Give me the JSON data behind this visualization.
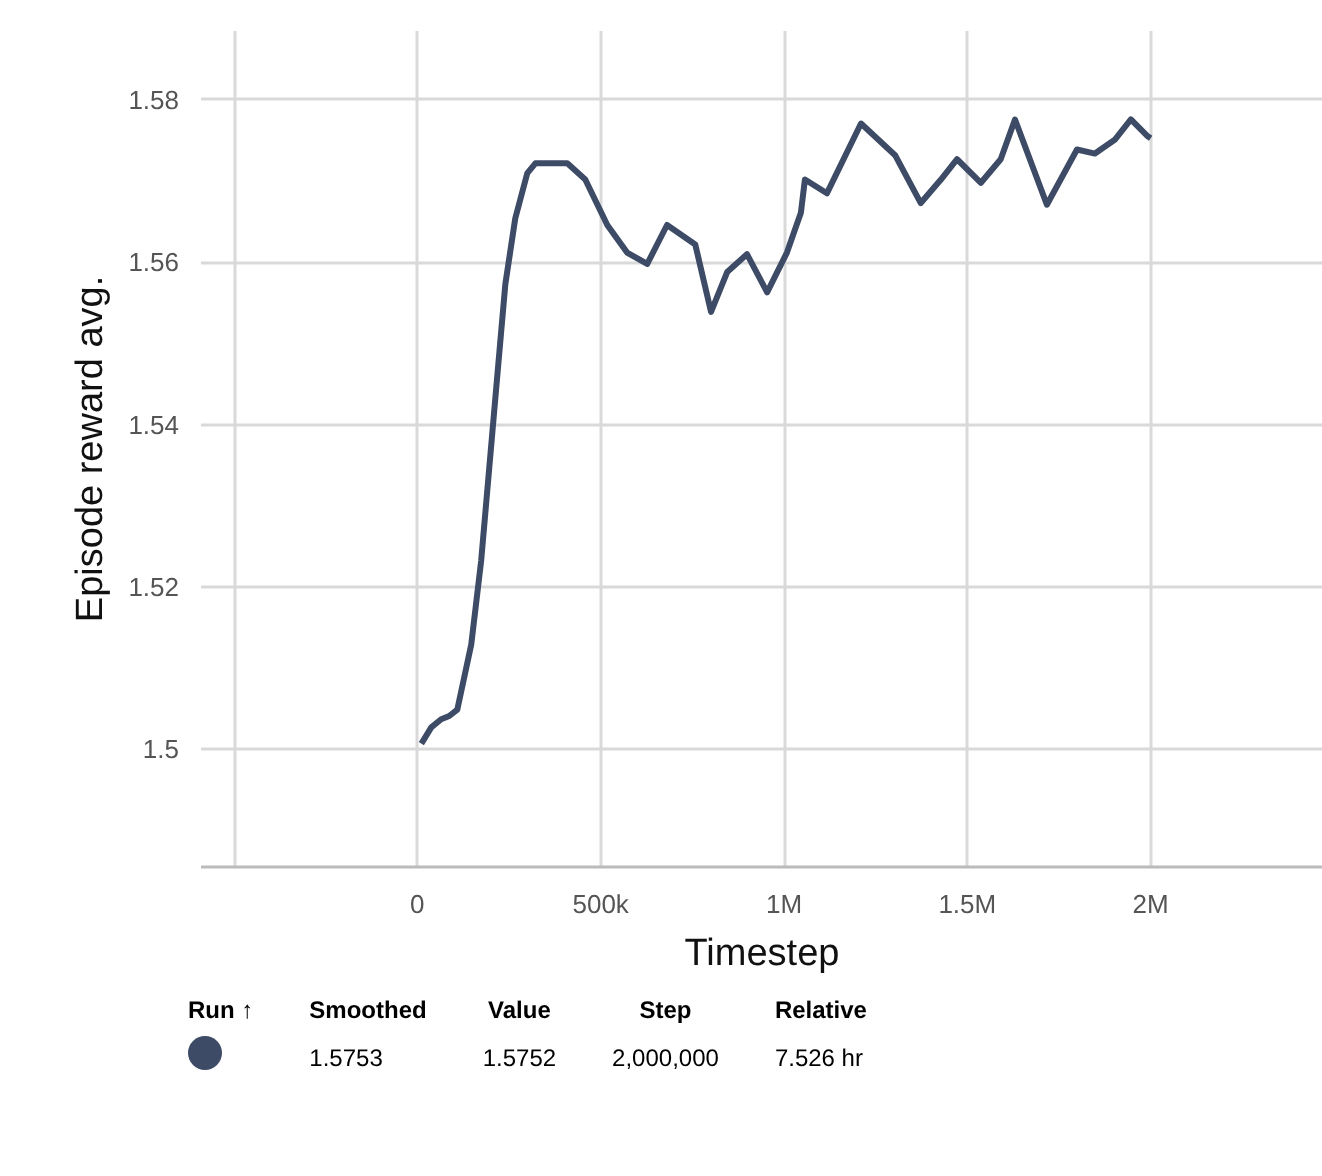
{
  "chart_data": {
    "type": "line",
    "xlabel": "Timestep",
    "ylabel": "Episode reward avg.",
    "x": [
      11000,
      38000,
      65000,
      87000,
      109000,
      147000,
      174000,
      213000,
      240000,
      267000,
      300000,
      322000,
      409000,
      458000,
      518000,
      572000,
      627000,
      681000,
      758000,
      801000,
      845000,
      899000,
      954000,
      1008000,
      1046000,
      1057000,
      1117000,
      1210000,
      1303000,
      1373000,
      1428000,
      1472000,
      1537000,
      1591000,
      1630000,
      1717000,
      1799000,
      1848000,
      1902000,
      1946000,
      1990000,
      2000000
    ],
    "series": [
      {
        "color": "#3d4b66",
        "values": [
          1.5007,
          1.5027,
          1.5037,
          1.5041,
          1.5049,
          1.5129,
          1.5232,
          1.5434,
          1.5573,
          1.5654,
          1.571,
          1.5722,
          1.5722,
          1.5702,
          1.5646,
          1.5612,
          1.5598,
          1.5646,
          1.5622,
          1.5539,
          1.5588,
          1.561,
          1.5563,
          1.5612,
          1.5661,
          1.5702,
          1.5685,
          1.5771,
          1.5732,
          1.5673,
          1.5702,
          1.5727,
          1.5698,
          1.5727,
          1.5776,
          1.5671,
          1.5739,
          1.5734,
          1.5751,
          1.5776,
          1.5756,
          1.5753
        ]
      }
    ],
    "xlim": [
      -590000,
      2470000
    ],
    "ylim": [
      1.4855,
      1.5885
    ],
    "xticks": [
      {
        "value": -500000,
        "label": null
      },
      0,
      {
        "value": 500000,
        "label": "500k"
      },
      {
        "value": 1000000,
        "label": "1M"
      },
      {
        "value": 1500000,
        "label": "1.5M"
      },
      {
        "value": 2000000,
        "label": "2M"
      }
    ],
    "yticks": [
      {
        "value": 1.5,
        "label": "1.5"
      },
      1.52,
      1.54,
      1.56,
      1.58
    ],
    "grid": true,
    "marker": "none",
    "line_style": "solid",
    "annotations": [
      "Run ↑",
      "Smoothed",
      "Value",
      "Step",
      "Relative",
      "1.5753",
      "1.5752",
      "2,000,000",
      "7.526 hr"
    ]
  }
}
